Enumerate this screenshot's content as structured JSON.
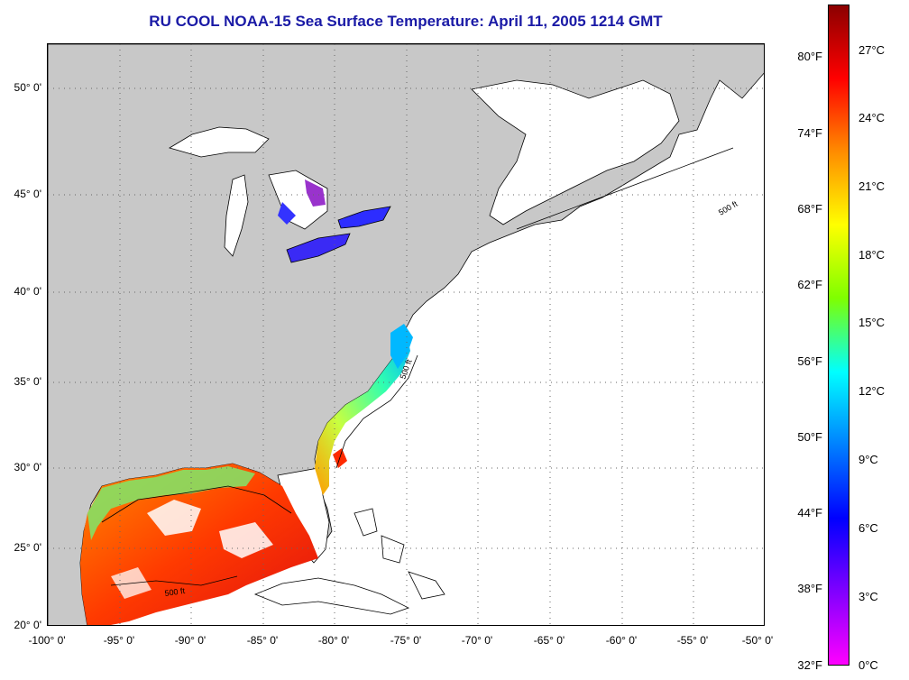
{
  "title": "RU COOL  NOAA-15  Sea Surface Temperature:  April 11, 2005 1214 GMT",
  "latitude_labels": [
    "50° 0'",
    "45° 0'",
    "40° 0'",
    "35° 0'",
    "30° 0'",
    "25° 0'",
    "20° 0'"
  ],
  "longitude_labels": [
    "-100° 0'",
    "-95° 0'",
    "-90° 0'",
    "-85° 0'",
    "-80° 0'",
    "-75° 0'",
    "-70° 0'",
    "-65° 0'",
    "-60° 0'",
    "-55° 0'",
    "-50° 0'"
  ],
  "colorbar": {
    "fahrenheit_labels": [
      "80°F",
      "74°F",
      "68°F",
      "62°F",
      "56°F",
      "50°F",
      "44°F",
      "38°F",
      "32°F"
    ],
    "celsius_labels": [
      "27°C",
      "24°C",
      "21°C",
      "18°C",
      "15°C",
      "12°C",
      "9°C",
      "6°C",
      "3°C",
      "0°C"
    ],
    "gradient_colors": [
      "#8b0000",
      "#ff0000",
      "#ff8c00",
      "#ffff00",
      "#7fff00",
      "#00ffff",
      "#0080ff",
      "#0000ff",
      "#8000ff",
      "#ff00ff"
    ]
  },
  "contour_labels": {
    "depth": "500 ft"
  },
  "colors": {
    "land": "#c8c8c8",
    "ocean_no_data": "#ffffff",
    "title": "#1a1aa6",
    "grid": "#666666"
  }
}
